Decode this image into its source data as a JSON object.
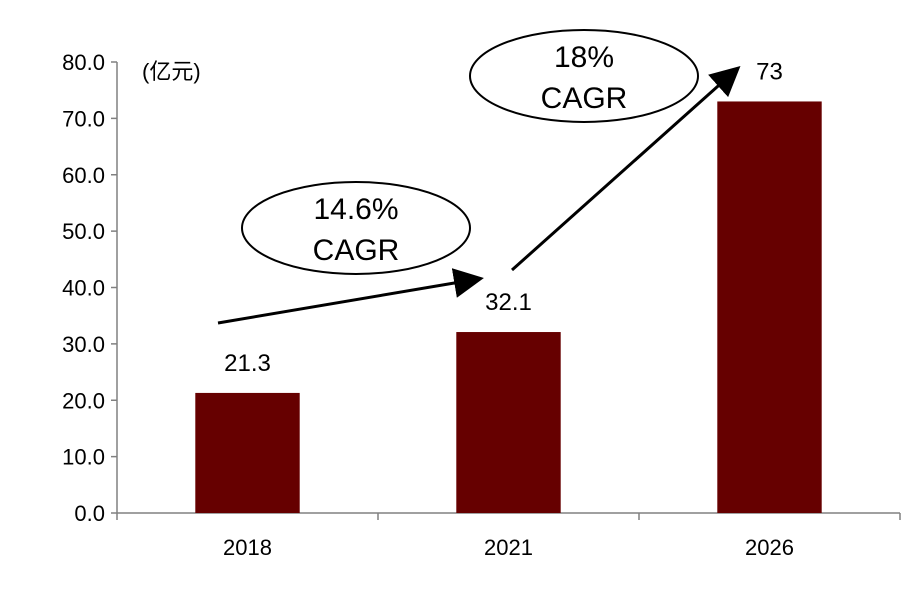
{
  "chart_data": {
    "type": "bar",
    "title": "",
    "xlabel": "",
    "ylabel": "",
    "unit_label": "(亿元)",
    "categories": [
      "2018",
      "2021",
      "2026"
    ],
    "values": [
      21.3,
      32.1,
      73
    ],
    "data_labels": [
      "21.3",
      "32.1",
      "73"
    ],
    "ylim": [
      0,
      80
    ],
    "yticks": [
      "0.0",
      "10.0",
      "20.0",
      "30.0",
      "40.0",
      "50.0",
      "60.0",
      "70.0",
      "80.0"
    ],
    "bar_color": "#660000",
    "grid": false,
    "annotations": [
      {
        "line1": "14.6%",
        "line2": "CAGR"
      },
      {
        "line1": "18%",
        "line2": "CAGR"
      }
    ]
  }
}
